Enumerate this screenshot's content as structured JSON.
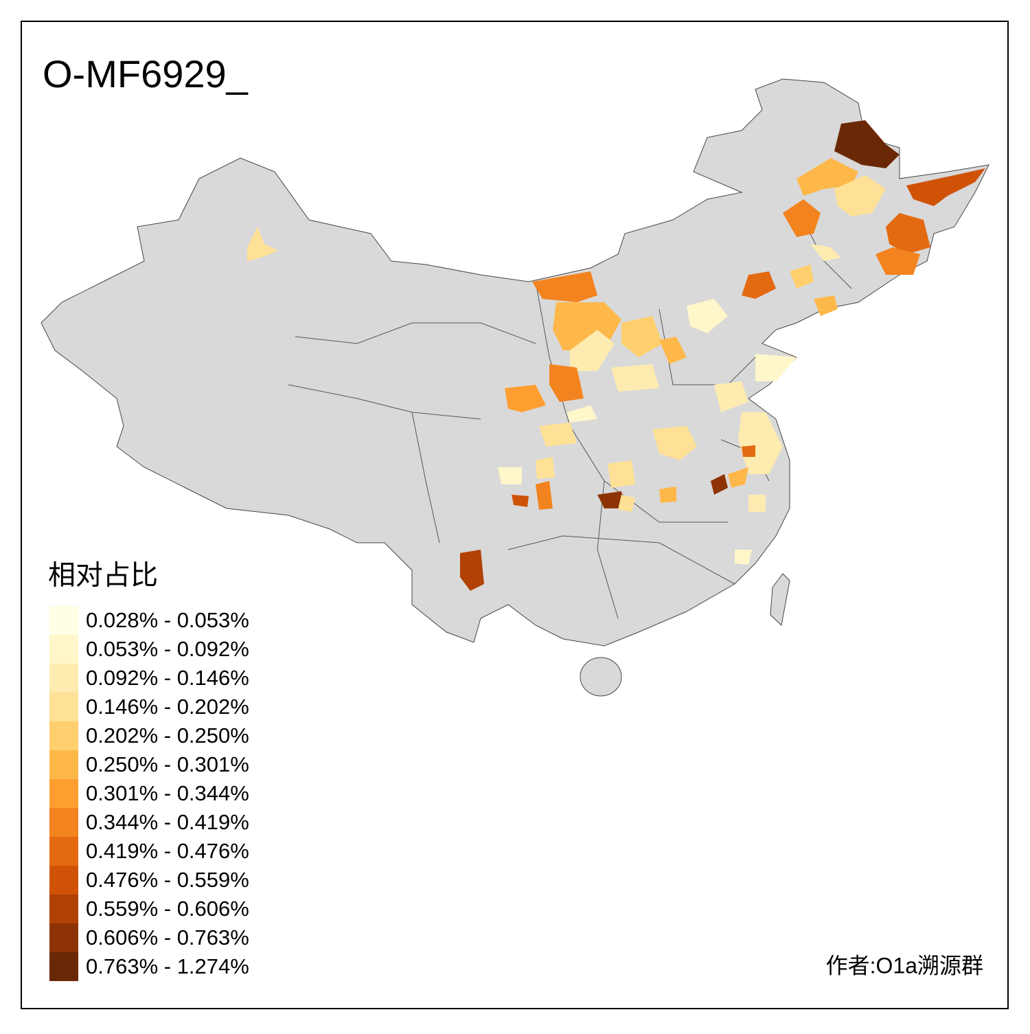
{
  "title": "O-MF6929_",
  "legend": {
    "title": "相对占比",
    "items": [
      {
        "label": "0.028% - 0.053%",
        "color": "#FFFFE5"
      },
      {
        "label": "0.053% - 0.092%",
        "color": "#FFF6CA"
      },
      {
        "label": "0.092% - 0.146%",
        "color": "#FEEBB0"
      },
      {
        "label": "0.146% - 0.202%",
        "color": "#FEE196"
      },
      {
        "label": "0.202% - 0.250%",
        "color": "#FECF6C"
      },
      {
        "label": "0.250% - 0.301%",
        "color": "#FEB84A"
      },
      {
        "label": "0.301% - 0.344%",
        "color": "#FE9E31"
      },
      {
        "label": "0.344% - 0.419%",
        "color": "#F3831E"
      },
      {
        "label": "0.419% - 0.476%",
        "color": "#E46A12"
      },
      {
        "label": "0.476% - 0.559%",
        "color": "#CF5207"
      },
      {
        "label": "0.559% - 0.606%",
        "color": "#B14104"
      },
      {
        "label": "0.606% - 0.763%",
        "color": "#8E3305"
      },
      {
        "label": "0.763% - 1.274%",
        "color": "#6B2806"
      }
    ]
  },
  "author": "作者:O1a溯源群"
}
